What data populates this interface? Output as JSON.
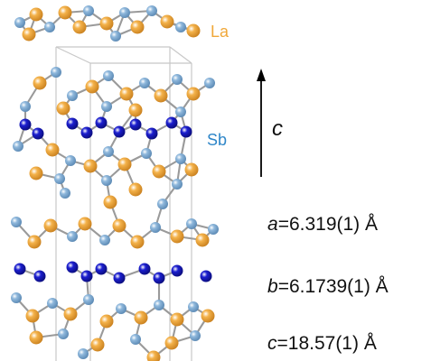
{
  "legend": {
    "la": {
      "label": "La",
      "color": "#f0a83a"
    },
    "sb": {
      "label": "Sb",
      "color": "#2e86c8"
    }
  },
  "axis": {
    "label": "c"
  },
  "lattice": [
    {
      "symbol": "a",
      "value": "=6.319(1) Å"
    },
    {
      "symbol": "b",
      "value": "=6.1739(1) Å"
    },
    {
      "symbol": "c",
      "value": "=18.57(1) Å"
    }
  ],
  "colors": {
    "la_atom": "#f4b24a",
    "sb_light_atom": "#8fb8dc",
    "sb_dark_atom": "#1c1fd0",
    "bond": "#9a9a9a",
    "unit_cell": "#c8c8c8"
  }
}
